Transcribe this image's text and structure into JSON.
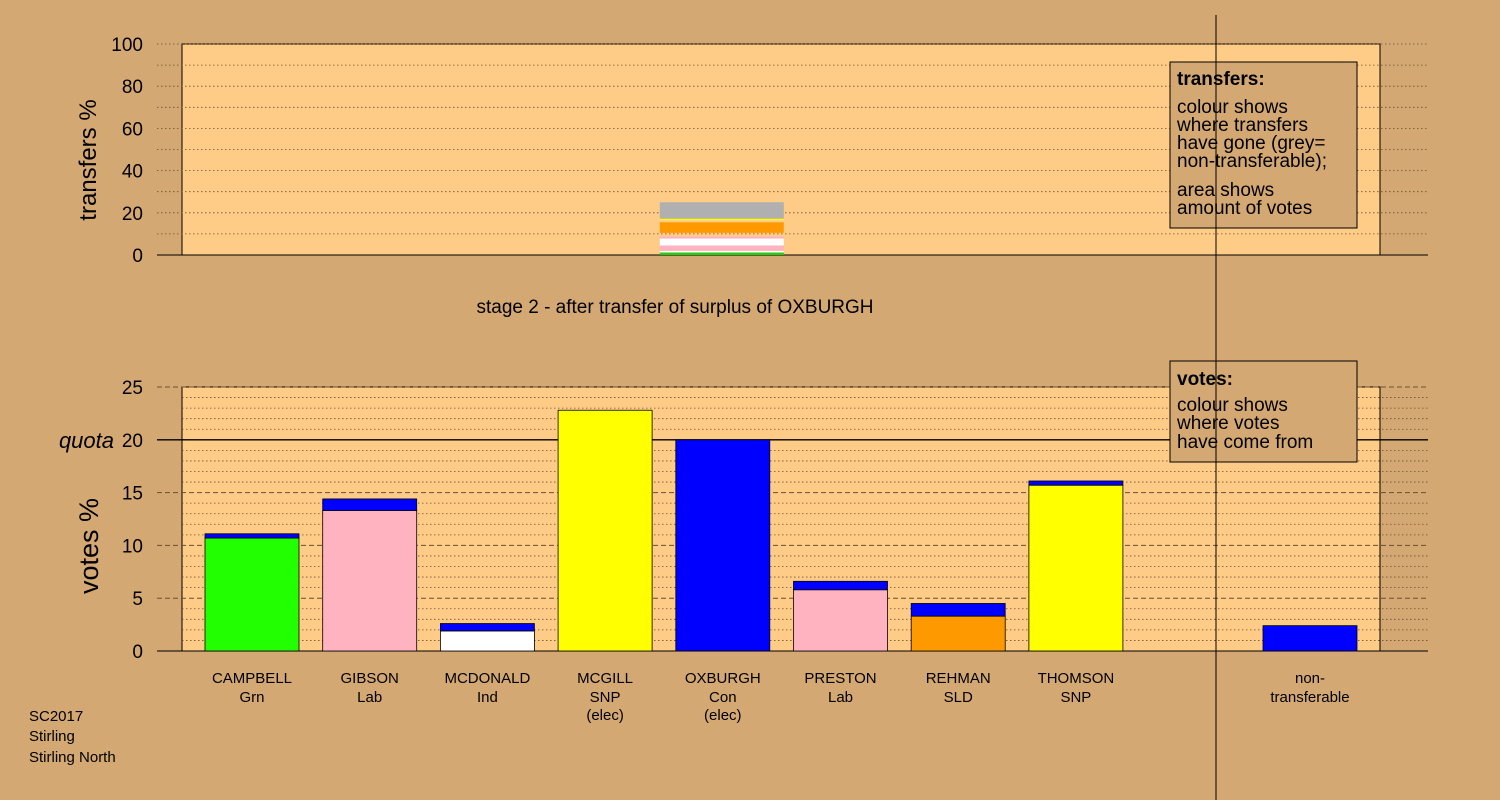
{
  "chart_data": [
    {
      "type": "bar",
      "panel": "transfers",
      "ylabel": "transfers %",
      "ylim": [
        0,
        100
      ],
      "yticks": [
        0,
        20,
        40,
        60,
        80,
        100
      ],
      "grid": true,
      "bar_category": "OXBURGH",
      "stack": [
        {
          "color": "#22cc11",
          "from": 0,
          "to": 1.2
        },
        {
          "color": "#ffffff",
          "from": 1.2,
          "to": 2.0
        },
        {
          "color": "#ffb2c0",
          "from": 2.0,
          "to": 4.5
        },
        {
          "color": "#ffffff",
          "from": 4.5,
          "to": 7.8
        },
        {
          "color": "#ffb2c0",
          "from": 7.8,
          "to": 8.8
        },
        {
          "color": "#ff9900",
          "from": 10.5,
          "to": 15.5
        },
        {
          "color": "#ffff00",
          "from": 16.5,
          "to": 17.2
        },
        {
          "color": "#b0b0b0",
          "from": 17.2,
          "to": 25.0
        }
      ],
      "legend": {
        "title": "transfers:",
        "lines1": [
          "colour shows",
          "where transfers",
          "have gone (grey=",
          "non-transferable);"
        ],
        "lines2": [
          "area shows",
          "amount of votes"
        ]
      }
    },
    {
      "type": "bar",
      "panel": "votes",
      "ylabel": "votes %",
      "ylim": [
        0,
        25
      ],
      "yticks": [
        0,
        5,
        10,
        15,
        20,
        25
      ],
      "quota": 20,
      "quota_label": "quota",
      "grid": true,
      "categories": [
        {
          "name": "CAMPBELL",
          "party": "Grn",
          "note": ""
        },
        {
          "name": "GIBSON",
          "party": "Lab",
          "note": ""
        },
        {
          "name": "MCDONALD",
          "party": "Ind",
          "note": ""
        },
        {
          "name": "MCGILL",
          "party": "SNP",
          "note": "(elec)"
        },
        {
          "name": "OXBURGH",
          "party": "Con",
          "note": "(elec)"
        },
        {
          "name": "PRESTON",
          "party": "Lab",
          "note": ""
        },
        {
          "name": "REHMAN",
          "party": "SLD",
          "note": ""
        },
        {
          "name": "THOMSON",
          "party": "SNP",
          "note": ""
        }
      ],
      "bars": [
        {
          "base": 10.7,
          "base_color": "#22ff00",
          "transfer": 0.4
        },
        {
          "base": 13.3,
          "base_color": "#ffb2c0",
          "transfer": 1.1
        },
        {
          "base": 1.9,
          "base_color": "#ffffff",
          "transfer": 0.7
        },
        {
          "base": 22.8,
          "base_color": "#ffff00",
          "transfer": 0
        },
        {
          "base": 20.0,
          "base_color": "#0000ff",
          "transfer": 0
        },
        {
          "base": 5.8,
          "base_color": "#ffb2c0",
          "transfer": 0.8
        },
        {
          "base": 3.3,
          "base_color": "#ff9900",
          "transfer": 1.2
        },
        {
          "base": 15.7,
          "base_color": "#ffff00",
          "transfer": 0.4
        }
      ],
      "transfer_color": "#0000ff",
      "nontransferable": {
        "label1": "non-",
        "label2": "transferable",
        "value": 2.4,
        "color": "#0000ff"
      },
      "legend": {
        "title": "votes:",
        "lines1": [
          "colour shows",
          "where votes",
          "have come from"
        ]
      }
    }
  ],
  "stage_caption": "stage 2 - after transfer of surplus of OXBURGH",
  "footer": {
    "line1": "SC2017",
    "line2": "Stirling",
    "line3": "Stirling North"
  },
  "colors": {
    "background": "#d4a872",
    "plot": "#ffcc88"
  }
}
